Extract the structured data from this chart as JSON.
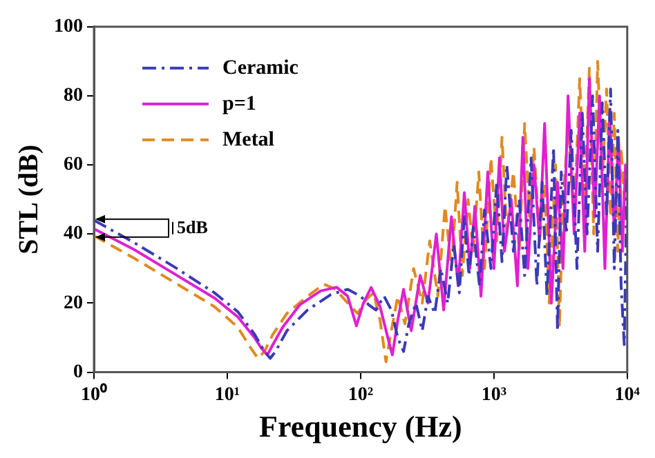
{
  "chart_data": {
    "type": "line",
    "xlabel": "Frequency (Hz)",
    "ylabel": "STL (dB)",
    "log": "x",
    "xlim": [
      1,
      10000
    ],
    "xticks": [
      {
        "value": 1,
        "label": "10⁰"
      },
      {
        "value": 10,
        "label": "10¹"
      },
      {
        "value": 100,
        "label": "10²"
      },
      {
        "value": 1000,
        "label": "10³"
      },
      {
        "value": 10000,
        "label": "10⁴"
      }
    ],
    "ylim": [
      0,
      100
    ],
    "yticks": [
      0,
      20,
      40,
      60,
      80,
      100
    ],
    "grid": false,
    "legend": "top left",
    "annotations": [
      {
        "text": "5dB",
        "x": 1,
        "y": 41.5
      }
    ],
    "series": [
      {
        "name": "Ceramic",
        "color": "#3a3ab8",
        "line_style": "dashdot",
        "x": [
          1,
          2,
          4,
          8,
          12,
          16,
          19,
          21,
          23,
          28,
          40,
          60,
          80,
          100,
          115,
          130,
          150,
          170,
          190,
          210,
          230,
          260,
          290,
          320,
          360,
          400,
          450,
          500,
          550,
          600,
          650,
          700,
          780,
          850,
          950,
          1050,
          1150,
          1250,
          1400,
          1550,
          1700,
          1900,
          2100,
          2300,
          2500,
          2800,
          3000,
          3200,
          3500,
          3800,
          4200,
          4600,
          5000,
          5500,
          6000,
          6500,
          7000,
          7500,
          8000,
          8500,
          9000,
          9500,
          10000
        ],
        "values": [
          44,
          37.5,
          30.5,
          23,
          17.5,
          11,
          6,
          4,
          6,
          12,
          18,
          22.5,
          24,
          22,
          19.5,
          18,
          22,
          18,
          10,
          6,
          14,
          20,
          12,
          22,
          17,
          30,
          20,
          37,
          23,
          45,
          28,
          42,
          25,
          47,
          30,
          55,
          32,
          60,
          35,
          50,
          28,
          62,
          25,
          55,
          22,
          65,
          12,
          58,
          40,
          70,
          30,
          75,
          40,
          80,
          35,
          78,
          45,
          82,
          30,
          70,
          25,
          8,
          60
        ]
      },
      {
        "name": "p=1",
        "color": "#e020d0",
        "line_style": "solid",
        "x": [
          1,
          2,
          4,
          8,
          12,
          16,
          18,
          20,
          22,
          26,
          35,
          50,
          66,
          80,
          93,
          105,
          120,
          140,
          160,
          173,
          190,
          210,
          240,
          280,
          320,
          370,
          420,
          480,
          540,
          600,
          660,
          720,
          800,
          900,
          1000,
          1100,
          1200,
          1350,
          1500,
          1650,
          1800,
          2000,
          2200,
          2400,
          2700,
          3000,
          3300,
          3600,
          4000,
          4400,
          4800,
          5200,
          5700,
          6200,
          6800,
          7400,
          8000,
          8600,
          9200,
          9700,
          10000
        ],
        "values": [
          41.5,
          35.5,
          28.5,
          21.5,
          16,
          10,
          7,
          5,
          8,
          13,
          19.5,
          23.5,
          24.6,
          22,
          13.4,
          20,
          24.5,
          19,
          10,
          5,
          15,
          24,
          12,
          28,
          20,
          40,
          18,
          45,
          25,
          52,
          30,
          48,
          22,
          58,
          30,
          62,
          35,
          50,
          25,
          68,
          30,
          60,
          38,
          72,
          20,
          55,
          30,
          80,
          40,
          75,
          35,
          85,
          45,
          80,
          30,
          75,
          40,
          68,
          35,
          60,
          55
        ]
      },
      {
        "name": "Metal",
        "color": "#e08a20",
        "line_style": "dashed",
        "x": [
          1,
          2,
          4,
          8,
          12,
          15,
          17,
          19,
          22,
          28,
          40,
          53,
          65,
          80,
          95,
          110,
          125,
          140,
          155,
          170,
          190,
          215,
          250,
          290,
          330,
          380,
          430,
          480,
          530,
          580,
          640,
          700,
          770,
          850,
          950,
          1050,
          1150,
          1250,
          1400,
          1550,
          1700,
          1850,
          2000,
          2200,
          2400,
          2600,
          2900,
          3100,
          3300,
          3600,
          4000,
          4400,
          4800,
          5200,
          5600,
          6000,
          6500,
          7000,
          7500,
          8000,
          8500,
          9000,
          9500,
          10000
        ],
        "values": [
          39.5,
          33,
          26,
          19,
          13,
          7,
          4,
          6,
          11,
          17,
          22,
          25.5,
          24,
          20,
          17,
          21,
          23,
          15,
          3,
          12,
          22,
          14,
          30,
          20,
          38,
          22,
          48,
          30,
          55,
          28,
          50,
          35,
          58,
          30,
          62,
          38,
          68,
          40,
          58,
          35,
          72,
          45,
          65,
          38,
          55,
          20,
          60,
          13,
          50,
          70,
          45,
          85,
          50,
          88,
          40,
          90,
          55,
          82,
          45,
          75,
          35,
          65,
          50,
          60
        ]
      }
    ]
  }
}
